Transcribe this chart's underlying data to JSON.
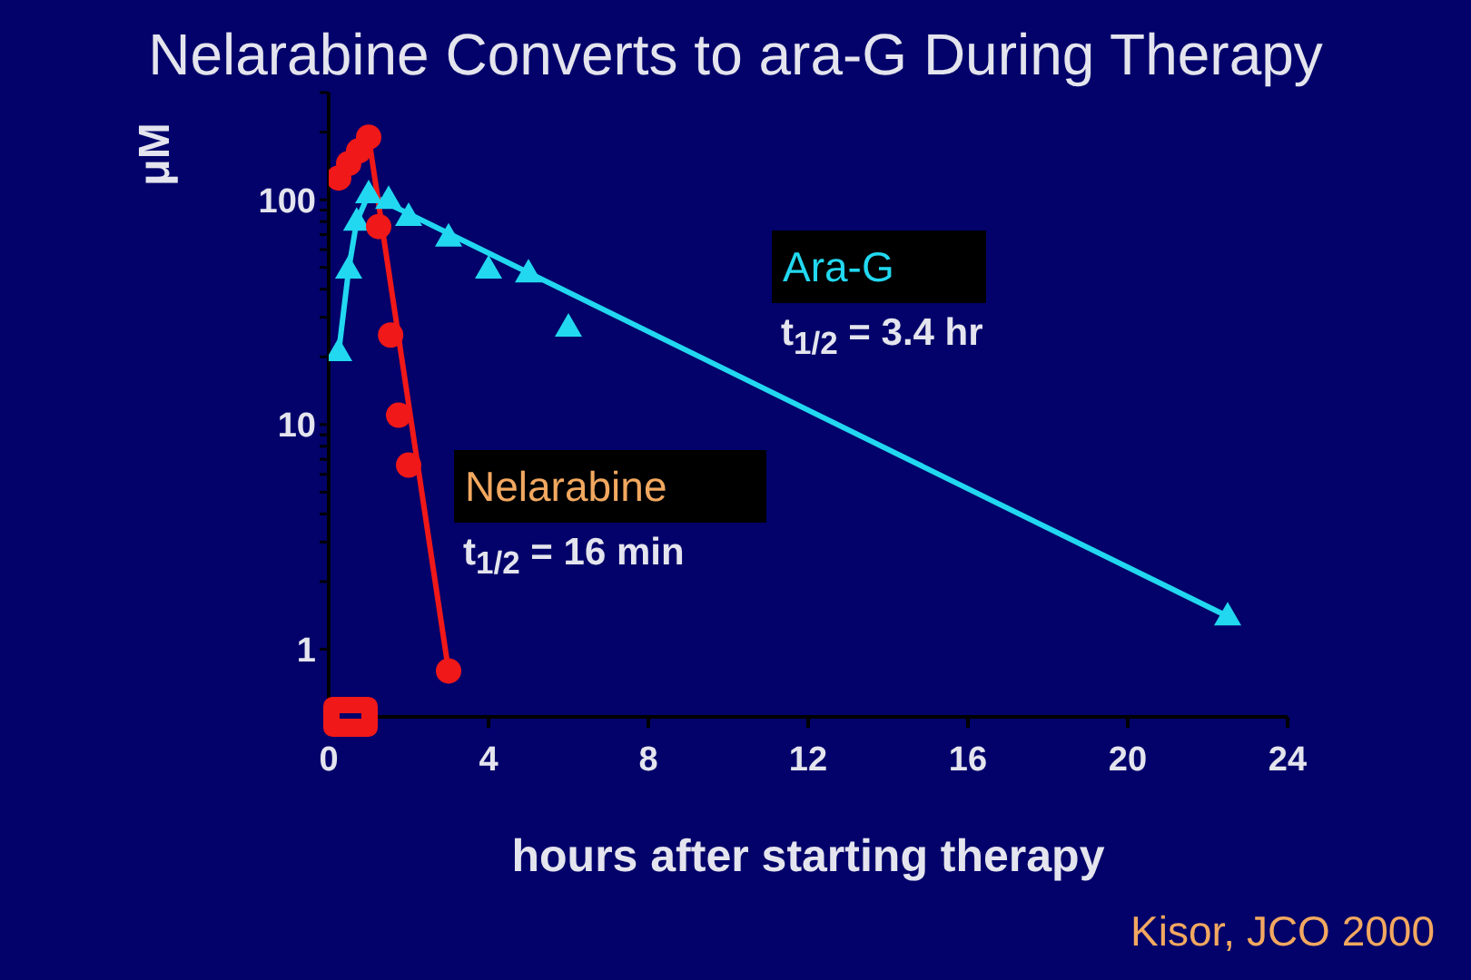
{
  "chart_data": {
    "type": "scatter",
    "title": "Nelarabine Converts to ara-G During Therapy",
    "xlabel": "hours after starting therapy",
    "ylabel": "μM",
    "annotations": [
      "t$_{1/2}$ = 3.4 hr",
      "t$_{1/2}$ = 16 min",
      "Kisor, JCO 2000"
    ],
    "xlim": [
      0,
      24
    ],
    "xticks": [
      0,
      4,
      8,
      12,
      16,
      20,
      24
    ],
    "ylim": [
      0.5,
      300
    ],
    "log": true,
    "yticks": [
      1,
      {
        "value": 2,
        "label": null
      },
      {
        "value": 3,
        "label": null
      },
      {
        "value": 4,
        "label": null
      },
      {
        "value": 5,
        "label": null
      },
      {
        "value": 6,
        "label": null
      },
      {
        "value": 7,
        "label": null
      },
      {
        "value": 8,
        "label": null
      },
      {
        "value": 9,
        "label": null
      },
      10,
      {
        "value": 20,
        "label": null
      },
      {
        "value": 30,
        "label": null
      },
      {
        "value": 40,
        "label": null
      },
      {
        "value": 50,
        "label": null
      },
      {
        "value": 60,
        "label": null
      },
      {
        "value": 70,
        "label": null
      },
      {
        "value": 80,
        "label": null
      },
      {
        "value": 90,
        "label": null
      },
      100,
      {
        "value": 200,
        "label": null
      },
      {
        "value": 300,
        "label": null
      }
    ],
    "series": [
      {
        "name": "Ara-G",
        "marker": "triangle",
        "color": "#22d8f0",
        "x": [
          0.25,
          0.5,
          0.7,
          1.0,
          1.5,
          2.0,
          3.0,
          4.0,
          5.0,
          6.0,
          22.5
        ],
        "values": [
          21,
          49,
          80,
          106,
          100,
          84,
          68,
          49,
          47,
          27,
          1.4
        ]
      },
      {
        "type": "line",
        "color": "#22d8f0",
        "x": [
          0.25,
          0.5,
          0.7,
          1.0,
          22.5
        ],
        "values": [
          21,
          49,
          80,
          106,
          1.4
        ]
      },
      {
        "name": "Nelarabine",
        "marker": "circle",
        "color": "#f01818",
        "x": [
          0.25,
          0.5,
          0.75,
          1.0,
          1.25,
          1.55,
          1.75,
          2.0,
          3.0
        ],
        "values": [
          125,
          145,
          165,
          190,
          76,
          25,
          11,
          6.6,
          0.8
        ]
      },
      {
        "type": "line",
        "color": "#f01818",
        "x": [
          0.25,
          0.5,
          0.75,
          1.0,
          3.0
        ],
        "values": [
          125,
          145,
          165,
          190,
          0.8
        ]
      }
    ]
  }
}
